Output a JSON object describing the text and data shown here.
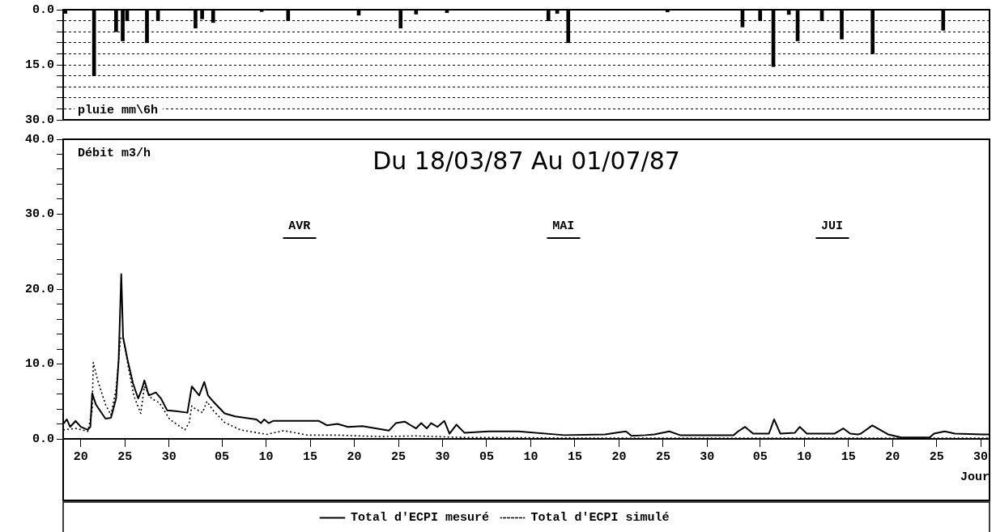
{
  "chart_data": [
    {
      "type": "bar",
      "ylabel": "pluie mm\\6h",
      "xlim": [
        "--03-18",
        "--07-01"
      ],
      "ylim": [
        30,
        0
      ],
      "yticks": [
        {
          "value": 0,
          "label": "0.0"
        },
        {
          "value": 3,
          "label": null
        },
        {
          "value": 6,
          "label": null
        },
        {
          "value": 9,
          "label": null
        },
        {
          "value": 12,
          "label": null
        },
        {
          "value": 15,
          "label": "15.0"
        },
        {
          "value": 18,
          "label": null
        },
        {
          "value": 21,
          "label": null
        },
        {
          "value": 24,
          "label": null
        },
        {
          "value": 27,
          "label": null
        },
        {
          "value": 30,
          "label": "30.0"
        }
      ],
      "x": [
        "--03-18T06:00",
        "--03-21T12:00",
        "--03-24T00:00",
        "--03-24T18:00",
        "--03-25T06:00",
        "--03-27T12:00",
        "--03-28T18:00",
        "--04-02T00:00",
        "--04-02T18:00",
        "--04-04T00:00",
        "--04-09T12:00",
        "--04-12T12:00",
        "--04-20T12:00",
        "--04-25T06:00",
        "--04-27T00:00",
        "--04-30T12:00",
        "--05-12T00:00",
        "--05-13T00:00",
        "--05-14T06:00",
        "--05-25T12:00",
        "--06-03T00:00",
        "--06-05T00:00",
        "--06-06T12:00",
        "--06-08T06:00",
        "--06-09T06:00",
        "--06-12T00:00",
        "--06-14T06:00",
        "--06-17T18:00",
        "--06-25T18:00"
      ],
      "values": [
        1,
        18,
        6,
        8.5,
        3,
        9,
        3,
        5,
        2.5,
        3.5,
        0.5,
        3,
        1.5,
        5,
        1.2,
        0.8,
        3,
        1,
        9,
        0.6,
        4.7,
        3,
        15.5,
        1.3,
        8.5,
        3,
        8,
        12,
        5.6
      ],
      "color": "#000000",
      "grid": "y",
      "tick_labels": "y",
      "legend": false
    },
    {
      "type": "line",
      "title": "Du 18/03/87 Au 01/07/87",
      "ylabel": "Débit m3/h",
      "xlabel": "Jour",
      "xlim": [
        "--03-18",
        "--07-01"
      ],
      "ylim": [
        0,
        40
      ],
      "xticks": [
        {
          "value": "--03-20",
          "label": "20"
        },
        {
          "value": "--03-25",
          "label": "25"
        },
        {
          "value": "--03-30",
          "label": "30"
        },
        {
          "value": "--04-05",
          "label": "05"
        },
        {
          "value": "--04-10",
          "label": "10"
        },
        {
          "value": "--04-15",
          "label": "15"
        },
        {
          "value": "--04-20",
          "label": "20"
        },
        {
          "value": "--04-25",
          "label": "25"
        },
        {
          "value": "--04-30",
          "label": "30"
        },
        {
          "value": "--05-05",
          "label": "05"
        },
        {
          "value": "--05-10",
          "label": "10"
        },
        {
          "value": "--05-15",
          "label": "15"
        },
        {
          "value": "--05-20",
          "label": "20"
        },
        {
          "value": "--05-25",
          "label": "25"
        },
        {
          "value": "--05-30",
          "label": "30"
        },
        {
          "value": "--06-05",
          "label": "05"
        },
        {
          "value": "--06-10",
          "label": "10"
        },
        {
          "value": "--06-15",
          "label": "15"
        },
        {
          "value": "--06-20",
          "label": "20"
        },
        {
          "value": "--06-25",
          "label": "25"
        },
        {
          "value": "--06-30",
          "label": "30"
        }
      ],
      "yticks": [
        {
          "value": 0,
          "label": "0.0"
        },
        {
          "value": 2,
          "label": null
        },
        {
          "value": 4,
          "label": null
        },
        {
          "value": 6,
          "label": null
        },
        {
          "value": 8,
          "label": null
        },
        {
          "value": 10,
          "label": "10.0"
        },
        {
          "value": 12,
          "label": null
        },
        {
          "value": 14,
          "label": null
        },
        {
          "value": 16,
          "label": null
        },
        {
          "value": 18,
          "label": null
        },
        {
          "value": 20,
          "label": "20.0"
        },
        {
          "value": 22,
          "label": null
        },
        {
          "value": 24,
          "label": null
        },
        {
          "value": 26,
          "label": null
        },
        {
          "value": 28,
          "label": null
        },
        {
          "value": 30,
          "label": "30.0"
        },
        {
          "value": 32,
          "label": null
        },
        {
          "value": 34,
          "label": null
        },
        {
          "value": 36,
          "label": null
        },
        {
          "value": 38,
          "label": null
        },
        {
          "value": 40,
          "label": "40.0"
        }
      ],
      "series": [
        {
          "name": "Total d'ECPI mesuré",
          "color": "#000000",
          "line_style": "solid",
          "x": [
            "--03-18T00:00",
            "--03-18T10:00",
            "--03-18T19:00",
            "--03-19T10:00",
            "--03-20T00:00",
            "--03-20T19:00",
            "--03-21T02:00",
            "--03-21T07:00",
            "--03-21T17:00",
            "--03-22T19:00",
            "--03-23T10:00",
            "--03-24T00:00",
            "--03-24T07:00",
            "--03-24T14:00",
            "--03-24T19:00",
            "--03-25T07:00",
            "--03-25T22:00",
            "--03-26T12:00",
            "--03-26T22:00",
            "--03-27T05:00",
            "--03-27T17:00",
            "--03-28T12:00",
            "--03-29T02:00",
            "--03-29T19:00",
            "--03-30T19:00",
            "--04-01T02:00",
            "--04-01T14:00",
            "--04-02T10:00",
            "--04-03T00:00",
            "--04-03T10:00",
            "--04-04T00:00",
            "--04-05T07:00",
            "--04-06T12:00",
            "--04-08T22:00",
            "--04-09T10:00",
            "--04-09T19:00",
            "--04-10T07:00",
            "--04-10T19:00",
            "--04-16T00:00",
            "--04-16T22:00",
            "--04-18T02:00",
            "--04-19T07:00",
            "--04-20T22:00",
            "--04-23T22:00",
            "--04-24T17:00",
            "--04-25T17:00",
            "--04-27T00:00",
            "--04-27T14:00",
            "--04-28T05:00",
            "--04-28T17:00",
            "--04-29T10:00",
            "--04-30T05:00",
            "--04-30T19:00",
            "--05-01T14:00",
            "--05-02T12:00",
            "--05-05T05:00",
            "--05-08T14:00",
            "--05-13T19:00",
            "--05-18T10:00",
            "--05-20T19:00",
            "--05-21T10:00",
            "--05-23T00:00",
            "--05-24T00:00",
            "--05-25T17:00",
            "--05-26T22:00",
            "--06-02T00:00",
            "--06-02T12:00",
            "--06-03T07:00",
            "--06-04T05:00",
            "--06-06T00:00",
            "--06-06T14:00",
            "--06-07T07:00",
            "--06-08T22:00",
            "--06-09T12:00",
            "--06-10T07:00",
            "--06-13T10:00",
            "--06-14T10:00",
            "--06-15T05:00",
            "--06-16T02:00",
            "--06-16T10:00",
            "--06-17T17:00",
            "--06-19T12:00",
            "--06-21T00:00",
            "--06-24T05:00",
            "--06-24T17:00",
            "--06-25T22:00",
            "--06-27T02:00",
            "--06-30T05:00",
            "--07-01T00:00"
          ],
          "values": [
            2.0,
            2.6,
            1.6,
            2.4,
            1.6,
            1.2,
            1.6,
            6.1,
            4.6,
            2.7,
            2.8,
            5.4,
            10.6,
            22,
            13.6,
            10.6,
            7.4,
            5.4,
            6.6,
            7.8,
            5.8,
            6.2,
            5.4,
            3.8,
            3.7,
            3.5,
            7.0,
            5.8,
            7.6,
            5.8,
            5.0,
            3.4,
            3.0,
            2.6,
            2.1,
            2.6,
            2.1,
            2.4,
            2.4,
            1.8,
            2.0,
            1.6,
            1.7,
            1.1,
            2.1,
            2.3,
            1.4,
            2.1,
            1.4,
            2.1,
            1.6,
            2.4,
            0.7,
            1.9,
            0.8,
            1.0,
            1.0,
            0.5,
            0.6,
            1.0,
            0.4,
            0.5,
            0.6,
            1.0,
            0.5,
            0.5,
            1.0,
            1.6,
            0.7,
            0.7,
            2.6,
            0.7,
            0.8,
            1.6,
            0.7,
            0.7,
            1.4,
            0.7,
            0.6,
            0.7,
            1.8,
            0.6,
            0.2,
            0.2,
            0.7,
            1.0,
            0.7,
            0.6,
            0.6
          ]
        },
        {
          "name": "Total d'ECPI simulé",
          "color": "#000000",
          "line_style": "dotted",
          "x": [
            "--03-18T00:00",
            "--03-19T10:00",
            "--03-20T19:00",
            "--03-21T07:00",
            "--03-21T10:00",
            "--03-21T22:00",
            "--03-22T19:00",
            "--03-23T10:00",
            "--03-24T00:00",
            "--03-24T12:00",
            "--03-24T19:00",
            "--03-25T10:00",
            "--03-26T00:00",
            "--03-26T19:00",
            "--03-27T05:00",
            "--03-28T00:00",
            "--03-28T22:00",
            "--03-30T02:00",
            "--03-31T19:00",
            "--04-01T07:00",
            "--04-01T14:00",
            "--04-02T00:00",
            "--04-02T19:00",
            "--04-03T07:00",
            "--04-04T00:00",
            "--04-05T07:00",
            "--04-07T02:00",
            "--04-10T02:00",
            "--04-12T00:00",
            "--04-14T17:00",
            "--04-18T02:00",
            "--04-23T00:00",
            "--04-27T00:00",
            "--05-02T00:00",
            "--05-17T00:00",
            "--07-01T00:00"
          ],
          "values": [
            1.2,
            1.4,
            1.0,
            3.8,
            10.2,
            7.8,
            4.6,
            3.2,
            6.6,
            13.4,
            13.6,
            9.4,
            5.8,
            3.4,
            7.0,
            5.4,
            4.8,
            2.6,
            1.2,
            2.2,
            4.4,
            4.0,
            3.5,
            5.0,
            3.8,
            2.2,
            1.2,
            0.6,
            1.1,
            0.5,
            0.5,
            0.3,
            0.4,
            0.2,
            0.1,
            0.1
          ]
        }
      ],
      "annotations": [
        "AVR",
        "MAI",
        "JUI"
      ],
      "marker": "none",
      "grid": false,
      "legend": "bottom"
    }
  ]
}
